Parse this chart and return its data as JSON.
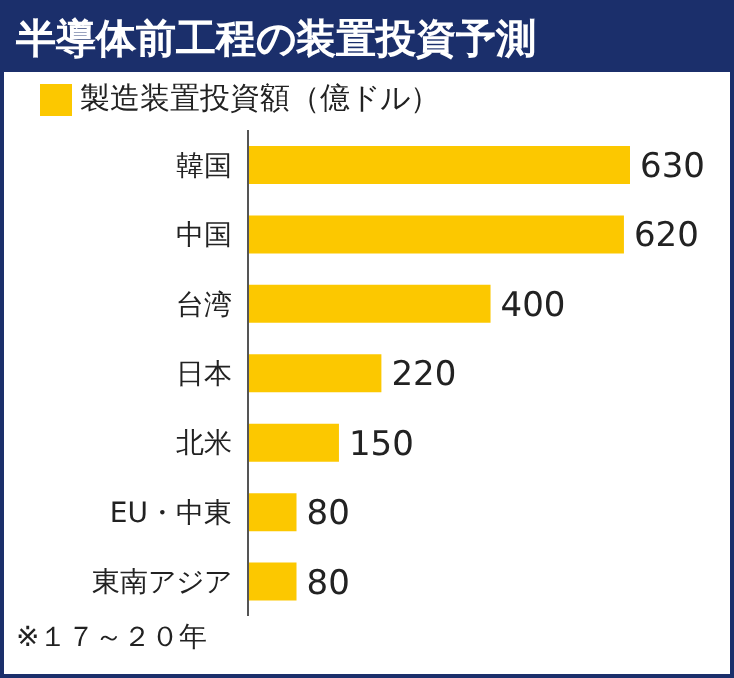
{
  "chart_data": {
    "type": "bar",
    "orientation": "horizontal",
    "title": "半導体前工程の装置投資予測",
    "categories": [
      "韓国",
      "中国",
      "台湾",
      "日本",
      "北米",
      "EU・中東",
      "東南アジア"
    ],
    "series": [
      {
        "name": "製造装置投資額（億ドル）",
        "color": "#fcc800",
        "values": [
          630,
          620,
          400,
          220,
          150,
          80,
          80
        ]
      }
    ],
    "data_labels": true,
    "legend": "top left",
    "annotations": [
      "※１７～２０年"
    ]
  }
}
